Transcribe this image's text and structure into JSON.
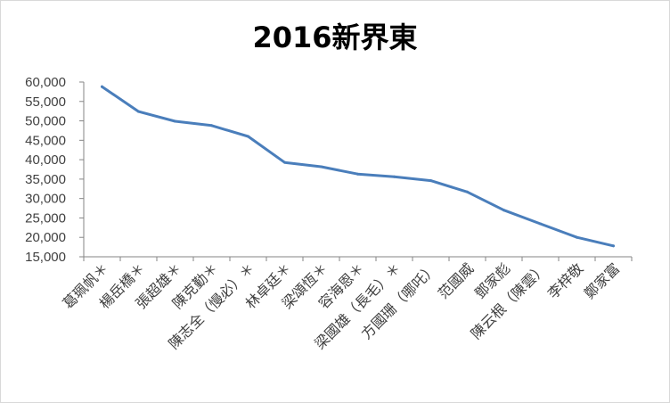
{
  "chart_data": {
    "type": "line",
    "title": "2016新界東",
    "xlabel": "",
    "ylabel": "",
    "categories": [
      "葛珮帆＊",
      "楊岳橋＊",
      "張超雄＊",
      "陳克勤＊",
      "陳志全（慢必）＊",
      "林卓廷＊",
      "梁頌恆＊",
      "容海恩＊",
      "梁國雄（長毛）＊",
      "方國珊（哪吒）",
      "范國威",
      "鄧家彪",
      "陳云根（陳雲）",
      "李梓敬",
      "鄭家富"
    ],
    "series": [
      {
        "values": [
          58800,
          52400,
          49900,
          48800,
          46000,
          39300,
          38200,
          36300,
          35600,
          34600,
          31700,
          27000,
          23500,
          20000,
          17800
        ],
        "color": "#4a7ebb"
      }
    ],
    "ylim": [
      15000,
      60000
    ],
    "yticks": [
      "15,000",
      "20,000",
      "25,000",
      "30,000",
      "35,000",
      "40,000",
      "45,000",
      "50,000",
      "55,000",
      "60,000"
    ],
    "ytick_values": [
      15000,
      20000,
      25000,
      30000,
      35000,
      40000,
      45000,
      50000,
      55000,
      60000
    ],
    "grid": false,
    "legend": "none",
    "axis_color": "#868686",
    "text_color": "#404040"
  }
}
